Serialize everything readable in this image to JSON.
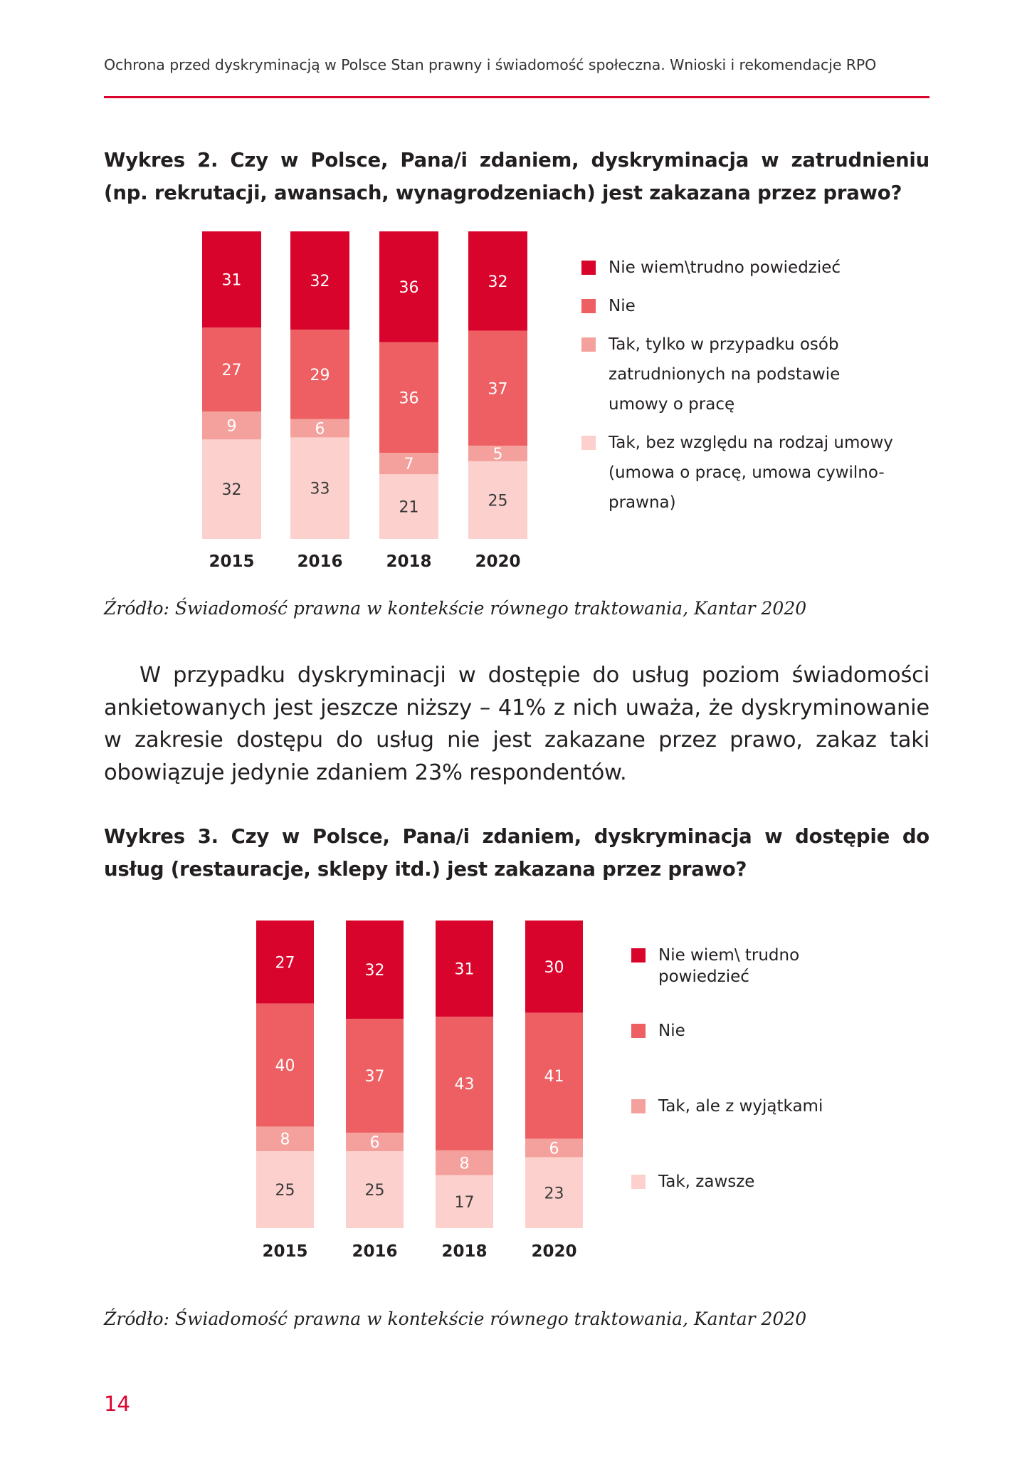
{
  "header": {
    "running_title": "Ochrona przed dyskryminacją w Polsce Stan prawny i świadomość społeczna. Wnioski i rekomendacje RPO"
  },
  "colors": {
    "accent": "#d9042c",
    "series": [
      "#d9042c",
      "#ed5f62",
      "#f4a19d",
      "#fcd0cc"
    ]
  },
  "chart2": {
    "title": "Wykres 2. Czy w Polsce, Pana/i zdaniem, dyskryminacja w zatrudnieniu (np. rekrutacji, awansach, wynagrodzeniach) jest zakazana przez prawo?",
    "source": "Źródło: Świadomość prawna w kontekście równego traktowania, Kantar 2020",
    "legend": [
      "Nie wiem\\trudno powiedzieć",
      "Nie",
      "Tak, tylko w przypadku osób zatrudnionych na podstawie umowy o pracę",
      "Tak, bez względu na rodzaj umowy (umowa o pracę, umowa cywilno-prawna)"
    ]
  },
  "paragraph": "W przypadku dyskryminacji w dostępie do usług poziom świadomości ankietowanych jest jeszcze niższy – 41% z nich uważa, że dyskryminowanie w zakresie dostępu do usług nie jest zakazane przez prawo, zakaz taki obowiązuje jedynie zdaniem 23% respondentów.",
  "chart3": {
    "title": "Wykres 3. Czy w Polsce, Pana/i zdaniem, dyskryminacja w dostępie do usług (restauracje, sklepy itd.) jest zakazana przez prawo?",
    "source": "Źródło: Świadomość prawna w kontekście równego traktowania, Kantar 2020",
    "legend": [
      "Nie wiem\\ trudno powiedzieć",
      "Nie",
      "Tak, ale z wyjątkami",
      "Tak, zawsze"
    ]
  },
  "page_number": "14",
  "chart_data": [
    {
      "type": "bar",
      "stacked": true,
      "categories": [
        "2015",
        "2016",
        "2018",
        "2020"
      ],
      "series": [
        {
          "name": "Nie wiem\\trudno powiedzieć",
          "values": [
            31,
            32,
            36,
            32
          ]
        },
        {
          "name": "Nie",
          "values": [
            27,
            29,
            36,
            37
          ]
        },
        {
          "name": "Tak, tylko w przypadku osób zatrudnionych na podstawie umowy o pracę",
          "values": [
            9,
            6,
            7,
            5
          ]
        },
        {
          "name": "Tak, bez względu na rodzaj umowy (umowa o pracę, umowa cywilno-prawna)",
          "values": [
            32,
            33,
            21,
            25
          ]
        }
      ],
      "legend_position": "right"
    },
    {
      "type": "bar",
      "stacked": true,
      "categories": [
        "2015",
        "2016",
        "2018",
        "2020"
      ],
      "series": [
        {
          "name": "Nie wiem\\ trudno powiedzieć",
          "values": [
            27,
            32,
            31,
            30
          ]
        },
        {
          "name": "Nie",
          "values": [
            40,
            37,
            43,
            41
          ]
        },
        {
          "name": "Tak, ale z wyjątkami",
          "values": [
            8,
            6,
            8,
            6
          ]
        },
        {
          "name": "Tak, zawsze",
          "values": [
            25,
            25,
            17,
            23
          ]
        }
      ],
      "legend_position": "right"
    }
  ]
}
